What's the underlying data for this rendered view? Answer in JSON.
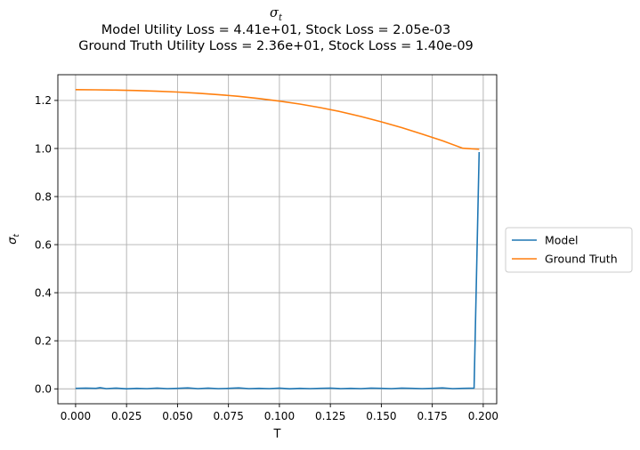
{
  "chart_data": {
    "type": "line",
    "title_symbol": "σ",
    "title_symbol_sub": "t",
    "title_line1": "Model Utility Loss = 4.41e+01, Stock Loss = 2.05e-03",
    "title_line2": "Ground Truth Utility Loss = 2.36e+01, Stock Loss = 1.40e-09",
    "xlabel": "T",
    "ylabel_symbol": "σ",
    "ylabel_sub": "t",
    "xlim": [
      -0.0087,
      0.2066
    ],
    "ylim": [
      -0.062,
      1.307
    ],
    "xticks": [
      0.0,
      0.025,
      0.05,
      0.075,
      0.1,
      0.125,
      0.15,
      0.175,
      0.2
    ],
    "xtick_labels": [
      "0.000",
      "0.025",
      "0.050",
      "0.075",
      "0.100",
      "0.125",
      "0.150",
      "0.175",
      "0.200"
    ],
    "yticks": [
      0.0,
      0.2,
      0.4,
      0.6,
      0.8,
      1.0,
      1.2
    ],
    "ytick_labels": [
      "0.0",
      "0.2",
      "0.4",
      "0.6",
      "0.8",
      "1.0",
      "1.2"
    ],
    "grid": true,
    "legend_position": "center-right outside",
    "series": [
      {
        "name": "Model",
        "color": "#1f77b4",
        "x": [
          0.0,
          0.005,
          0.01,
          0.012,
          0.015,
          0.02,
          0.025,
          0.03,
          0.035,
          0.04,
          0.045,
          0.05,
          0.055,
          0.06,
          0.065,
          0.07,
          0.075,
          0.08,
          0.085,
          0.09,
          0.095,
          0.1,
          0.105,
          0.11,
          0.115,
          0.12,
          0.125,
          0.13,
          0.135,
          0.14,
          0.145,
          0.15,
          0.155,
          0.16,
          0.165,
          0.17,
          0.175,
          0.18,
          0.185,
          0.19,
          0.1955,
          0.198
        ],
        "y": [
          0.002,
          0.003,
          0.002,
          0.005,
          0.001,
          0.003,
          0.0,
          0.002,
          0.001,
          0.003,
          0.001,
          0.002,
          0.004,
          0.001,
          0.003,
          0.001,
          0.002,
          0.004,
          0.001,
          0.002,
          0.001,
          0.003,
          0.0,
          0.002,
          0.001,
          0.002,
          0.003,
          0.001,
          0.002,
          0.001,
          0.003,
          0.002,
          0.001,
          0.003,
          0.002,
          0.001,
          0.002,
          0.004,
          0.001,
          0.002,
          0.003,
          0.985
        ]
      },
      {
        "name": "Ground Truth",
        "color": "#ff7f0e",
        "x": [
          0.0,
          0.01,
          0.02,
          0.03,
          0.04,
          0.05,
          0.06,
          0.07,
          0.08,
          0.09,
          0.1,
          0.11,
          0.12,
          0.13,
          0.14,
          0.15,
          0.16,
          0.17,
          0.18,
          0.19,
          0.198
        ],
        "y": [
          1.245,
          1.244,
          1.243,
          1.241,
          1.238,
          1.235,
          1.23,
          1.224,
          1.217,
          1.208,
          1.197,
          1.185,
          1.17,
          1.153,
          1.133,
          1.111,
          1.087,
          1.06,
          1.032,
          1.001,
          0.997
        ]
      }
    ]
  }
}
